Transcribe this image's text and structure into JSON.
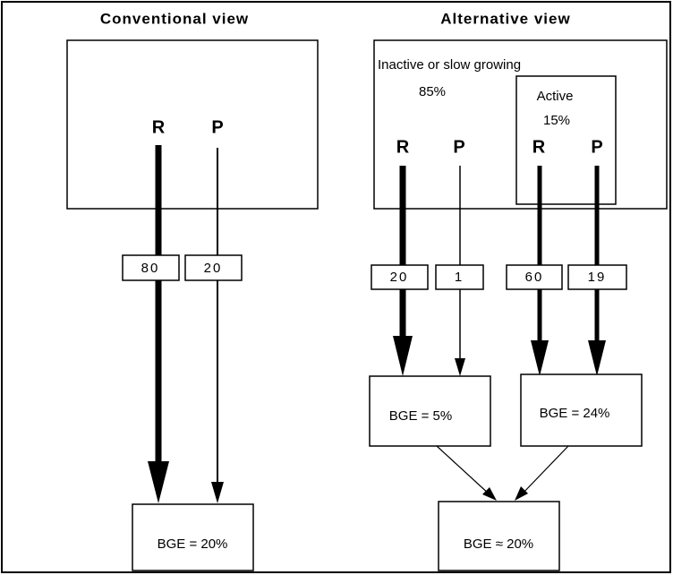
{
  "conventional": {
    "title": "Conventional view",
    "letters": [
      "R",
      "P"
    ],
    "flows": [
      "80",
      "20"
    ],
    "result": "BGE = 20%"
  },
  "alternative": {
    "title": "Alternative view",
    "inactive_label": "Inactive or slow growing",
    "inactive_share": "85%",
    "active_label": "Active",
    "active_share": "15%",
    "letters": [
      "R",
      "P",
      "R",
      "P"
    ],
    "flows": [
      "20",
      "1",
      "60",
      "19"
    ],
    "results": [
      "BGE = 5%",
      "BGE = 24%"
    ],
    "combined": "BGE ≈ 20%"
  }
}
